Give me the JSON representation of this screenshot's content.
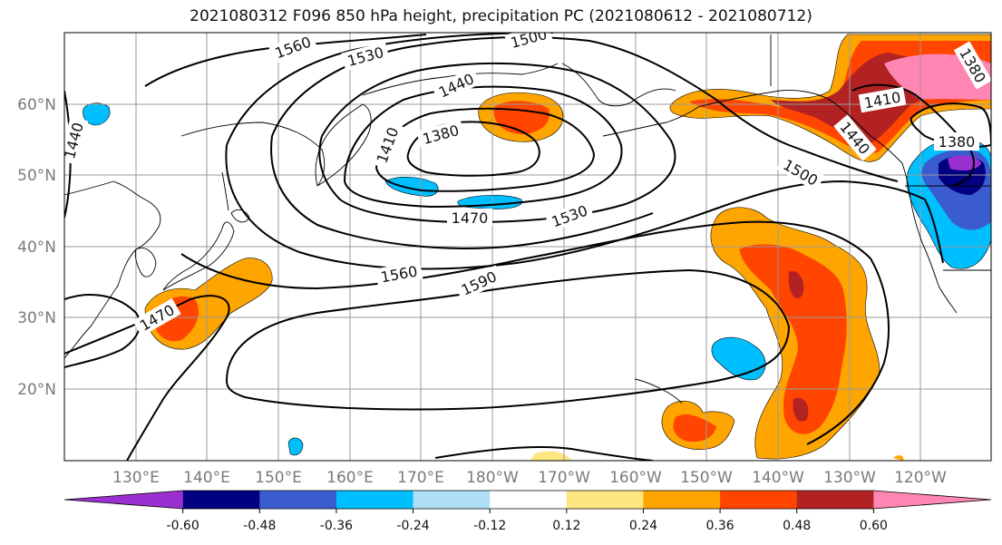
{
  "title": "2021080312 F096 850 hPa height, precipitation PC (2021080612 - 2021080712)",
  "lon_ticks": [
    "130°E",
    "140°E",
    "150°E",
    "160°E",
    "170°E",
    "180°W",
    "170°W",
    "160°W",
    "150°W",
    "140°W",
    "130°W",
    "120°W"
  ],
  "lat_ticks": [
    "60°N",
    "50°N",
    "40°N",
    "30°N",
    "20°N"
  ],
  "contour_labels": [
    "1560",
    "1530",
    "1500",
    "1440",
    "1410",
    "1380",
    "1470",
    "1530",
    "1500",
    "1560",
    "1590",
    "1470",
    "1440",
    "1410",
    "1380",
    "1380",
    "1440"
  ],
  "colorbar": {
    "colors": [
      "#9b30d0",
      "#000080",
      "#3a5ccf",
      "#00bfff",
      "#b0e0f8",
      "#ffffff",
      "#ffe680",
      "#ffa500",
      "#ff4500",
      "#b22222",
      "#ff85b3"
    ],
    "tick_labels": [
      "-0.60",
      "-0.48",
      "-0.36",
      "-0.24",
      "-0.12",
      "0.12",
      "0.24",
      "0.36",
      "0.48",
      "0.60"
    ]
  }
}
